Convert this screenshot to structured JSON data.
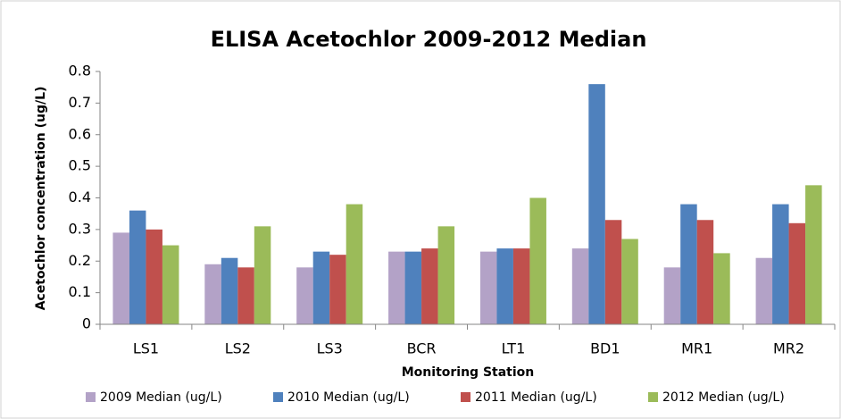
{
  "chart_data": {
    "type": "bar",
    "title": "ELISA Acetochlor 2009-2012 Median",
    "xlabel": "Monitoring Station",
    "ylabel": "Acetochlor concentration (ug/L)",
    "categories": [
      "LS1",
      "LS2",
      "LS3",
      "BCR",
      "LT1",
      "BD1",
      "MR1",
      "MR2"
    ],
    "series": [
      {
        "name": "2009 Median (ug/L)",
        "color": "#b3a2c7",
        "values": [
          0.29,
          0.19,
          0.18,
          0.23,
          0.23,
          0.24,
          0.18,
          0.21
        ]
      },
      {
        "name": "2010 Median (ug/L)",
        "color": "#4f81bd",
        "values": [
          0.36,
          0.21,
          0.23,
          0.23,
          0.24,
          0.76,
          0.38,
          0.38
        ]
      },
      {
        "name": "2011 Median (ug/L)",
        "color": "#c0504d",
        "values": [
          0.3,
          0.18,
          0.22,
          0.24,
          0.24,
          0.33,
          0.33,
          0.32
        ]
      },
      {
        "name": "2012 Median (ug/L)",
        "color": "#9bbb59",
        "values": [
          0.25,
          0.31,
          0.38,
          0.31,
          0.4,
          0.27,
          0.225,
          0.44
        ]
      }
    ],
    "ylim": [
      0,
      0.8
    ],
    "yticks": [
      0,
      0.1,
      0.2,
      0.3,
      0.4,
      0.5,
      0.6,
      0.7,
      0.8
    ],
    "grid": false,
    "legend": "bottom"
  }
}
